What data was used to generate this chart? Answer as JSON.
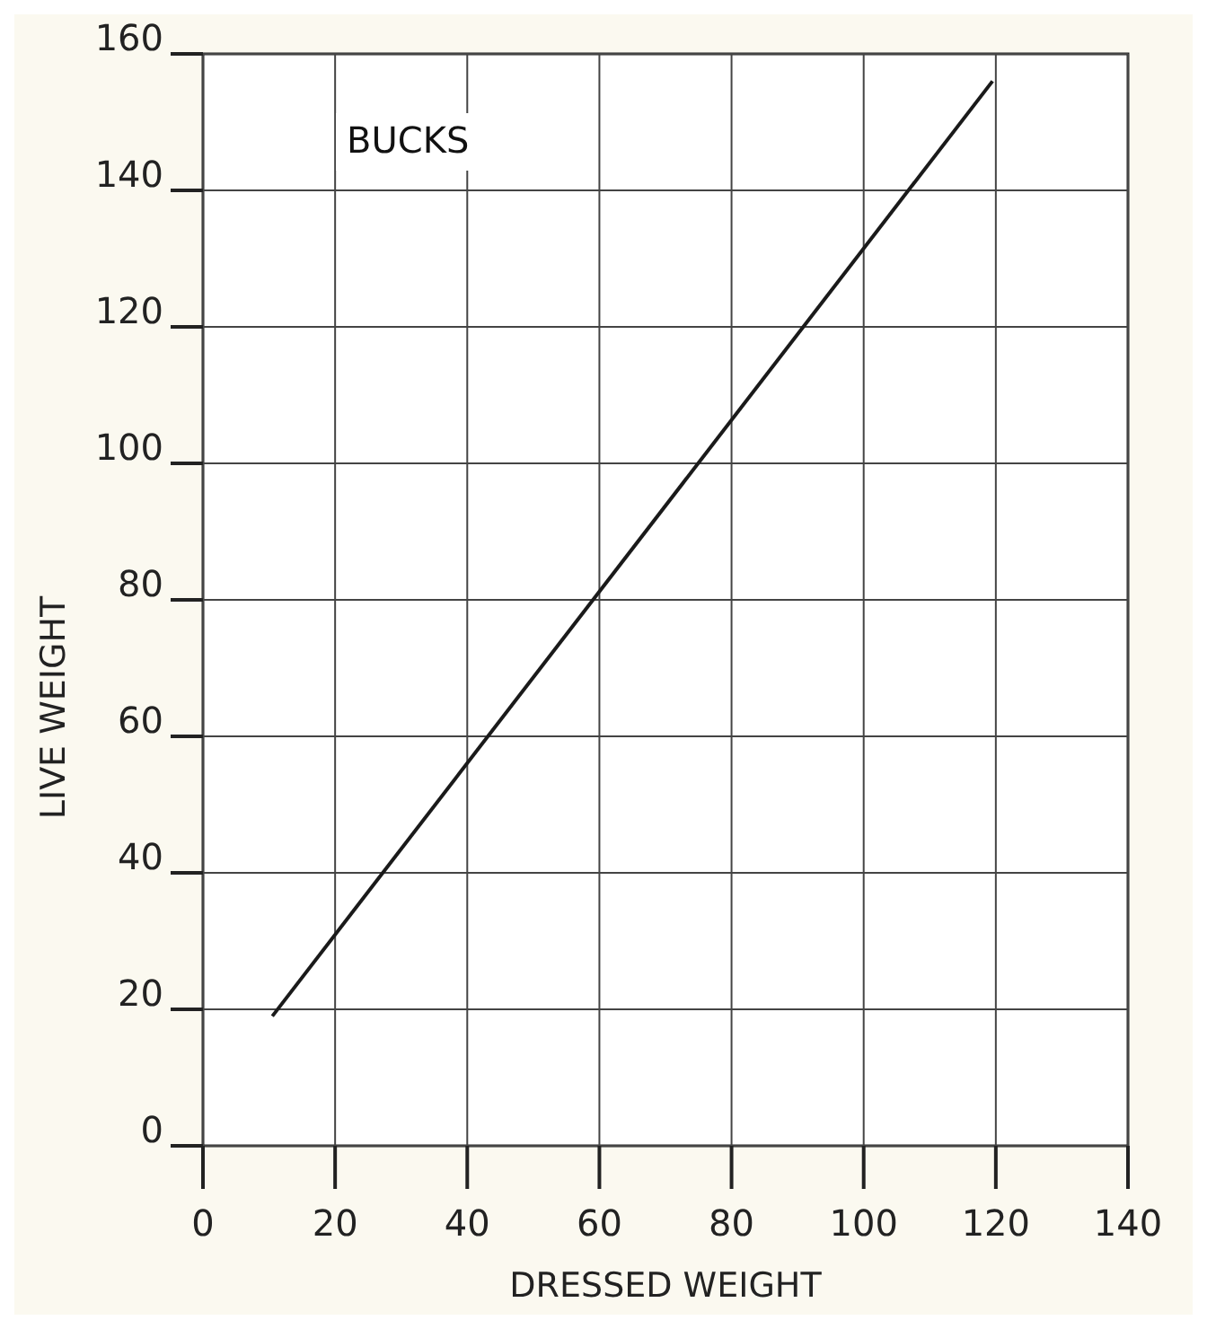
{
  "chart_data": {
    "type": "line",
    "xlabel": "DRESSED WEIGHT",
    "ylabel": "LIVE WEIGHT",
    "annotations": [
      "BUCKS"
    ],
    "x": [
      10.5,
      119.5
    ],
    "series": [
      {
        "color": "#1a1a1a",
        "values": [
          19,
          156
        ]
      }
    ],
    "xlim": [
      0,
      140
    ],
    "xticks": [
      0,
      20,
      40,
      60,
      80,
      100,
      120,
      140
    ],
    "ylim": [
      0,
      160
    ],
    "yticks": [
      0,
      20,
      40,
      60,
      80,
      100,
      120,
      140,
      160
    ],
    "grid": true,
    "marker": "none",
    "line_style": "solid"
  }
}
